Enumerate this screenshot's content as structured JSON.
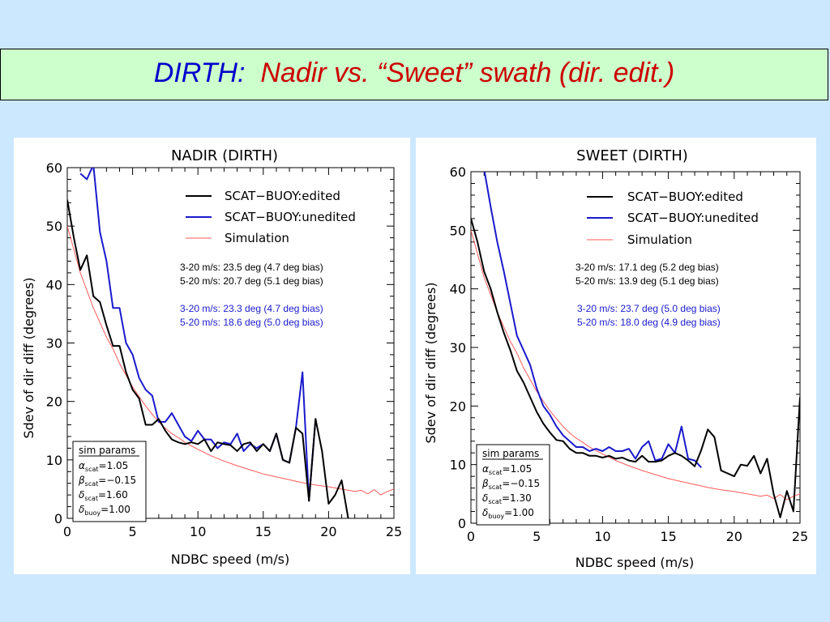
{
  "slide": {
    "title_prefix": "DIRTH:",
    "title_main": "Nadir vs. “Sweet” swath (dir. edit.)"
  },
  "colors": {
    "edited": "#000000",
    "unedited": "#1a1acc",
    "simulation": "#ff5a5a",
    "annotation_blue": "#1a1acc"
  },
  "panels": [
    {
      "title": "NADIR (DIRTH)",
      "xlabel": "NDBC speed (m/s)",
      "ylabel": "Sdev of dir diff (degrees)",
      "legend": [
        "SCAT−BUOY:edited",
        "SCAT−BUOY:unedited",
        "Simulation"
      ],
      "stats_edited": [
        "3-20 m/s:  23.5 deg  (4.7 deg bias)",
        "5-20 m/s:  20.7 deg  (5.1 deg bias)"
      ],
      "stats_unedited": [
        "3-20 m/s:  23.3 deg  (4.7 deg bias)",
        "5-20 m/s:  18.6 deg  (5.0 deg bias)"
      ],
      "params_title": "sim params",
      "params": [
        {
          "sym": "α",
          "sub": "scat",
          "val": "=1.05"
        },
        {
          "sym": "β",
          "sub": "scat",
          "val": "=−0.15"
        },
        {
          "sym": "δ",
          "sub": "scat",
          "val": "=1.60"
        },
        {
          "sym": "δ",
          "sub": "buoy",
          "val": "=1.00"
        }
      ]
    },
    {
      "title": "SWEET (DIRTH)",
      "xlabel": "NDBC speed (m/s)",
      "ylabel": "Sdev of dir diff (degrees)",
      "legend": [
        "SCAT−BUOY:edited",
        "SCAT−BUOY:unedited",
        "Simulation"
      ],
      "stats_edited": [
        "3-20 m/s:  17.1 deg  (5.2 deg bias)",
        "5-20 m/s:  13.9 deg  (5.1 deg bias)"
      ],
      "stats_unedited": [
        "3-20 m/s:  23.7 deg  (5.0 deg bias)",
        "5-20 m/s:  18.0 deg  (4.9 deg bias)"
      ],
      "params_title": "sim params",
      "params": [
        {
          "sym": "α",
          "sub": "scat",
          "val": "=1.05"
        },
        {
          "sym": "β",
          "sub": "scat",
          "val": "=−0.15"
        },
        {
          "sym": "δ",
          "sub": "scat",
          "val": "=1.30"
        },
        {
          "sym": "δ",
          "sub": "buoy",
          "val": "=1.00"
        }
      ]
    }
  ],
  "chart_data": [
    {
      "type": "line",
      "title": "NADIR (DIRTH)",
      "xlabel": "NDBC speed (m/s)",
      "ylabel": "Sdev of dir diff (degrees)",
      "xlim": [
        0,
        25
      ],
      "ylim": [
        0,
        60
      ],
      "xticks": [
        0,
        5,
        10,
        15,
        20,
        25
      ],
      "yticks": [
        0,
        10,
        20,
        30,
        40,
        50,
        60
      ],
      "grid": false,
      "legend_position": "top-right",
      "series": [
        {
          "name": "SCAT−BUOY:edited",
          "color": "#000000",
          "x": [
            0,
            0.5,
            1,
            1.5,
            2,
            2.5,
            3,
            3.5,
            4,
            4.5,
            5,
            5.5,
            6,
            6.5,
            7,
            7.5,
            8,
            8.5,
            9,
            9.5,
            10,
            10.5,
            11,
            11.5,
            12,
            12.5,
            13,
            13.5,
            14,
            14.5,
            15,
            15.5,
            16,
            16.5,
            17,
            17.5,
            18,
            18.5,
            19,
            19.5,
            20,
            20.5,
            21,
            21.5,
            22
          ],
          "y": [
            54.5,
            48,
            42.5,
            45,
            38,
            37,
            33,
            29.5,
            29.5,
            25,
            22,
            20.5,
            16,
            16,
            17,
            15,
            13.5,
            13,
            12.7,
            13,
            12.7,
            13.5,
            11.5,
            13,
            12.7,
            12.5,
            11.5,
            12.7,
            13,
            11.5,
            12.7,
            11.5,
            14.5,
            10,
            9.5,
            15.5,
            14.5,
            3,
            17,
            11.5,
            2.5,
            4,
            6.5,
            0,
            -2
          ]
        },
        {
          "name": "SCAT−BUOY:unedited",
          "color": "#1a1acc",
          "x": [
            1,
            1.5,
            2,
            2.5,
            3,
            3.5,
            4,
            4.5,
            5,
            5.5,
            6,
            6.5,
            7,
            7.5,
            8,
            8.5,
            9,
            9.5,
            10,
            10.5,
            11,
            11.5,
            12,
            12.5,
            13,
            13.5,
            14,
            14.5,
            15,
            15.5,
            16,
            16.5,
            17,
            17.5,
            18,
            18.5,
            19
          ],
          "y": [
            59,
            58,
            60.5,
            49,
            44,
            36,
            36,
            30,
            28,
            24,
            22,
            21,
            16.5,
            16.5,
            18,
            16,
            14,
            13.2,
            15,
            13.5,
            13.5,
            12,
            13,
            12.7,
            14.5,
            11.5,
            12.7,
            12,
            12.7,
            11.5,
            14.5,
            10,
            9.5,
            15.5,
            25,
            3,
            17
          ]
        },
        {
          "name": "Simulation",
          "color": "#ff5a5a",
          "x": [
            0,
            0.5,
            1,
            1.5,
            2,
            2.5,
            3,
            3.5,
            4,
            4.5,
            5,
            5.5,
            6,
            6.5,
            7,
            7.5,
            8,
            8.5,
            9,
            9.5,
            10,
            11,
            12,
            13,
            14,
            15,
            16,
            17,
            18,
            19,
            20,
            21,
            22,
            22.5,
            23,
            23.5,
            24,
            24.5,
            25
          ],
          "y": [
            50,
            46,
            42,
            39,
            36,
            33.5,
            31,
            29,
            26.5,
            24.5,
            22.5,
            20.8,
            19.2,
            17.8,
            16.5,
            15.4,
            14.5,
            13.8,
            13,
            12.4,
            11.8,
            10.7,
            9.8,
            9,
            8.3,
            7.6,
            7.1,
            6.6,
            6.1,
            5.7,
            5.4,
            5,
            4.6,
            4.8,
            4.2,
            4.9,
            4.0,
            4.6,
            5.0
          ]
        }
      ]
    },
    {
      "type": "line",
      "title": "SWEET (DIRTH)",
      "xlabel": "NDBC speed (m/s)",
      "ylabel": "Sdev of dir diff (degrees)",
      "xlim": [
        0,
        25
      ],
      "ylim": [
        0,
        60
      ],
      "xticks": [
        0,
        5,
        10,
        15,
        20,
        25
      ],
      "yticks": [
        0,
        10,
        20,
        30,
        40,
        50,
        60
      ],
      "grid": false,
      "legend_position": "top-right",
      "series": [
        {
          "name": "SCAT−BUOY:edited",
          "color": "#000000",
          "x": [
            0,
            0.5,
            1,
            1.5,
            2,
            2.5,
            3,
            3.5,
            4,
            4.5,
            5,
            5.5,
            6,
            6.5,
            7,
            7.5,
            8,
            8.5,
            9,
            9.5,
            10,
            10.5,
            11,
            11.5,
            12,
            12.5,
            13,
            13.5,
            14,
            14.5,
            15,
            15.5,
            16,
            16.5,
            17,
            17.5,
            18,
            18.5,
            19,
            19.5,
            20,
            20.5,
            21,
            21.5,
            22,
            22.5,
            23,
            23.5,
            24,
            24.5,
            25
          ],
          "y": [
            52,
            48,
            43,
            40,
            36,
            32.5,
            29.5,
            26,
            24,
            21.5,
            19,
            17,
            15.5,
            14.2,
            14,
            12.7,
            12,
            12,
            11.5,
            11.5,
            11.2,
            11.5,
            11,
            11.2,
            10.7,
            10.5,
            11.5,
            10.5,
            10.5,
            10.7,
            11.5,
            12,
            11.5,
            10.7,
            9.7,
            12.5,
            16,
            14.7,
            9,
            8.5,
            8,
            10,
            9.8,
            11.5,
            8.5,
            11,
            5,
            1,
            5.5,
            2,
            21.5
          ]
        },
        {
          "name": "SCAT−BUOY:unedited",
          "color": "#1a1acc",
          "x": [
            1,
            1.5,
            2,
            2.5,
            3,
            3.5,
            4,
            4.5,
            5,
            5.5,
            6,
            6.5,
            7,
            7.5,
            8,
            8.5,
            9,
            9.5,
            10,
            10.5,
            11,
            11.5,
            12,
            12.5,
            13,
            13.5,
            14,
            14.5,
            15,
            15.5,
            16,
            16.5,
            17,
            17.5
          ],
          "y": [
            60.5,
            54,
            48,
            43,
            37.5,
            32,
            29.5,
            27,
            23,
            20,
            18.5,
            16.5,
            15,
            14,
            13,
            13,
            12.3,
            12.7,
            12.3,
            13,
            12.3,
            12.3,
            12.7,
            11,
            13,
            14,
            10.7,
            11,
            13.5,
            12,
            16.5,
            11,
            10.7,
            9.5
          ]
        },
        {
          "name": "Simulation",
          "color": "#ff5a5a",
          "x": [
            0,
            0.5,
            1,
            1.5,
            2,
            2.5,
            3,
            3.5,
            4,
            4.5,
            5,
            5.5,
            6,
            6.5,
            7,
            7.5,
            8,
            8.5,
            9,
            9.5,
            10,
            11,
            12,
            13,
            14,
            15,
            16,
            17,
            18,
            19,
            20,
            21,
            22,
            22.5,
            23,
            23.5,
            24,
            24.5,
            25
          ],
          "y": [
            50,
            46,
            42,
            39,
            36,
            33.5,
            31,
            29,
            26.5,
            24.5,
            22.5,
            20.8,
            19.2,
            17.8,
            16.5,
            15.4,
            14.5,
            13.8,
            13,
            12.4,
            11.8,
            10.7,
            9.8,
            9,
            8.3,
            7.6,
            7.1,
            6.6,
            6.1,
            5.7,
            5.4,
            5,
            4.6,
            4.8,
            4.2,
            4.9,
            4.0,
            4.6,
            5.0
          ]
        }
      ]
    }
  ]
}
